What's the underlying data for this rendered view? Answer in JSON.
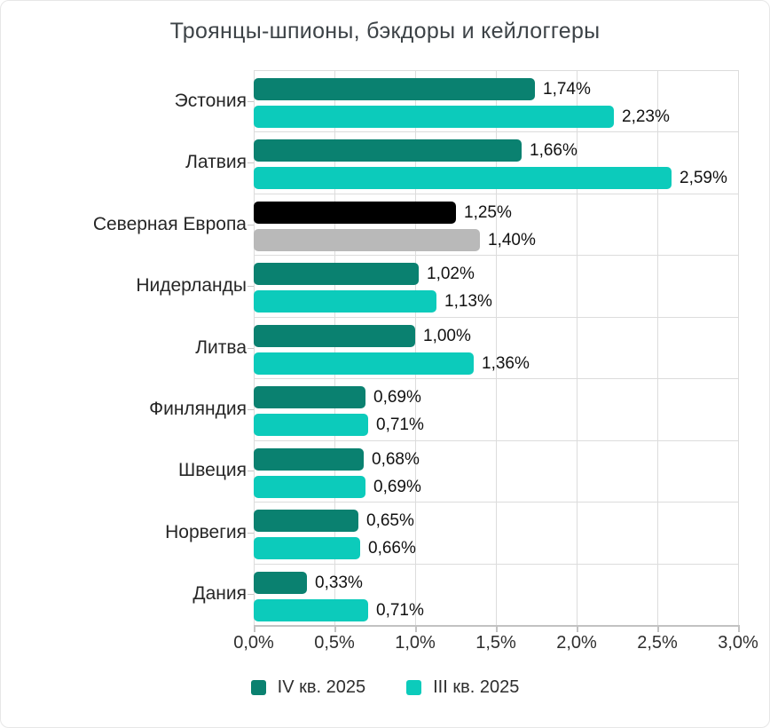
{
  "title": "Троянцы-шпионы, бэкдоры и кейлоггеры",
  "legend": {
    "items": [
      {
        "label": "IV кв. 2025",
        "color": "#0A8170"
      },
      {
        "label": "III кв. 2025",
        "color": "#0CCBBB"
      }
    ]
  },
  "chart_data": {
    "type": "bar",
    "orientation": "horizontal",
    "title": "Троянцы-шпионы, бэкдоры и кейлоггеры",
    "xlabel": "",
    "ylabel": "",
    "xlim": [
      0,
      3.0
    ],
    "x_ticks": [
      "0,0%",
      "0,5%",
      "1,0%",
      "1,5%",
      "2,0%",
      "2,5%",
      "3,0%"
    ],
    "x_tick_values": [
      0,
      0.5,
      1.0,
      1.5,
      2.0,
      2.5,
      3.0
    ],
    "grid": true,
    "legend_position": "bottom",
    "categories": [
      "Эстония",
      "Латвия",
      "Северная Европа",
      "Нидерланды",
      "Литва",
      "Финляндия",
      "Швеция",
      "Норвегия",
      "Дания"
    ],
    "highlight_category": "Северная Европа",
    "series": [
      {
        "name": "IV кв. 2025",
        "color": "#0A8170",
        "highlight_color": "#000000",
        "values": [
          1.74,
          1.66,
          1.25,
          1.02,
          1.0,
          0.69,
          0.68,
          0.65,
          0.33
        ],
        "value_labels": [
          "1,74%",
          "1,66%",
          "1,25%",
          "1,02%",
          "1,00%",
          "0,69%",
          "0,68%",
          "0,65%",
          "0,33%"
        ]
      },
      {
        "name": "III кв. 2025",
        "color": "#0CCBBB",
        "highlight_color": "#B9B9B9",
        "values": [
          2.23,
          2.59,
          1.4,
          1.13,
          1.36,
          0.71,
          0.69,
          0.66,
          0.71
        ],
        "value_labels": [
          "2,23%",
          "2,59%",
          "1,40%",
          "1,13%",
          "1,36%",
          "0,71%",
          "0,69%",
          "0,66%",
          "0,71%"
        ]
      }
    ]
  },
  "colors": {
    "background": "#FFFFFF",
    "card_border": "#E7E7E7",
    "grid_line": "#DCDCDC",
    "axis_line": "#C2C2C2",
    "title_text": "#3D4347",
    "category_text": "#262626",
    "value_text": "#111111",
    "tick_text": "#2E2E2E"
  }
}
